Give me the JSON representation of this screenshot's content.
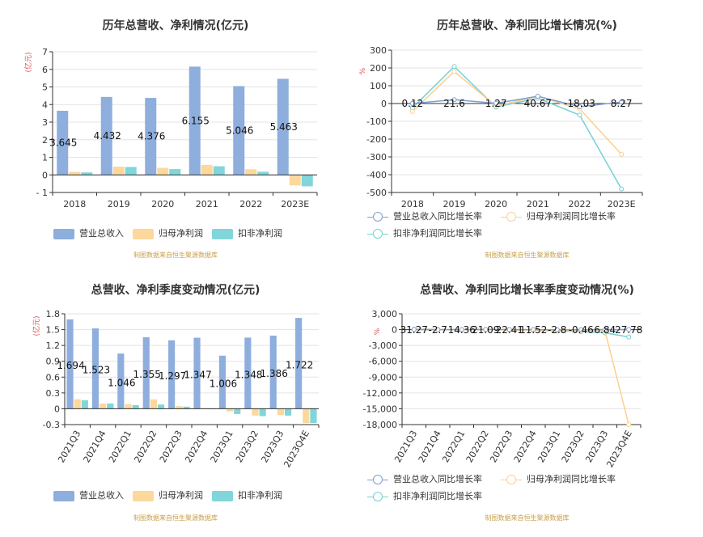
{
  "colors": {
    "revenue": "#8eaedd",
    "net_profit": "#fcd89d",
    "deducted_profit": "#80d6da",
    "line_revenue": "#7f9fd0",
    "line_net": "#fcd08e",
    "line_deducted": "#73d0d4",
    "axis": "#333333",
    "grid": "#e3e3e3",
    "source": "#c8a04a",
    "unit": "#e05050"
  },
  "source_note": "制图数据来自恒生聚源数据库",
  "chart_data": [
    {
      "type": "bar",
      "title": "历年总营收、净利情况(亿元)",
      "ylabel": "(亿元)",
      "categories": [
        "2018",
        "2019",
        "2020",
        "2021",
        "2022",
        "2023E"
      ],
      "ylim": [
        -1,
        7
      ],
      "yticks": [
        -1,
        0,
        1,
        2,
        3,
        4,
        5,
        6,
        7
      ],
      "ytick_labels": [
        "- 1",
        "0",
        "1",
        "2",
        "3",
        "4",
        "5",
        "6",
        "7"
      ],
      "series": [
        {
          "name": "营业总收入",
          "values": [
            3.645,
            4.432,
            4.376,
            6.155,
            5.046,
            5.463
          ]
        },
        {
          "name": "归母净利润",
          "values": [
            0.17,
            0.47,
            0.4,
            0.57,
            0.32,
            -0.6
          ]
        },
        {
          "name": "扣非净利润",
          "values": [
            0.14,
            0.45,
            0.33,
            0.49,
            0.18,
            -0.65
          ]
        }
      ],
      "data_labels": [
        "3.645",
        "4.432",
        "4.376",
        "6.155",
        "5.046",
        "5.463"
      ],
      "legend_position": "bottom-left"
    },
    {
      "type": "line",
      "title": "历年总营收、净利同比增长情况(%)",
      "ylabel": "%",
      "categories": [
        "2018",
        "2019",
        "2020",
        "2021",
        "2022",
        "2023E"
      ],
      "ylim": [
        -500,
        300
      ],
      "yticks": [
        -500,
        -400,
        -300,
        -200,
        -100,
        0,
        100,
        200,
        300
      ],
      "series": [
        {
          "name": "营业总收入同比增长率",
          "values": [
            0.12,
            21.6,
            1.27,
            40.67,
            -18.03,
            8.27
          ]
        },
        {
          "name": "归母净利润同比增长率",
          "values": [
            -45,
            180,
            -15,
            40,
            -30,
            -285
          ]
        },
        {
          "name": "扣非净利润同比增长率",
          "values": [
            -25,
            208,
            -20,
            30,
            -65,
            -480
          ]
        }
      ],
      "data_labels": [
        "0.12",
        "21.6",
        "1.27",
        "40.67",
        "-18.03",
        "8.27"
      ],
      "legend_position": "bottom-left"
    },
    {
      "type": "bar",
      "title": "总营收、净利季度变动情况(亿元)",
      "ylabel": "(亿元)",
      "categories": [
        "2021Q3",
        "2021Q4",
        "2022Q1",
        "2022Q2",
        "2022Q3",
        "2022Q4",
        "2023Q1",
        "2023Q2",
        "2023Q3",
        "2023Q4E"
      ],
      "ylim": [
        -0.3,
        1.8
      ],
      "yticks": [
        -0.3,
        0,
        0.3,
        0.6,
        0.9,
        1.2,
        1.5,
        1.8
      ],
      "ytick_labels": [
        "-0.3",
        "0",
        "0.3",
        "0.6",
        "0.9",
        "1.2",
        "1.5",
        "1.8"
      ],
      "series": [
        {
          "name": "营业总收入",
          "values": [
            1.694,
            1.523,
            1.046,
            1.355,
            1.297,
            1.347,
            1.006,
            1.348,
            1.386,
            1.722
          ]
        },
        {
          "name": "归母净利润",
          "values": [
            0.18,
            0.1,
            0.09,
            0.18,
            0.05,
            0.01,
            -0.05,
            -0.13,
            -0.12,
            -0.27
          ]
        },
        {
          "name": "扣非净利润",
          "values": [
            0.16,
            0.1,
            0.07,
            0.08,
            0.04,
            -0.01,
            -0.1,
            -0.14,
            -0.13,
            -0.27
          ]
        }
      ],
      "data_labels": [
        "1.694",
        "1.523",
        "1.046",
        "1.355",
        "1.297",
        "1.347",
        "1.006",
        "1.348",
        "1.386",
        "1.722"
      ],
      "legend_position": "bottom-left"
    },
    {
      "type": "line",
      "title": "总营收、净利同比增长率季度变动情况(%)",
      "ylabel": "%",
      "categories": [
        "2021Q3",
        "2021Q4",
        "2022Q1",
        "2022Q2",
        "2022Q3",
        "2022Q4",
        "2023Q1",
        "2023Q2",
        "2023Q3",
        "2023Q4E"
      ],
      "ylim": [
        -18000,
        3000
      ],
      "yticks": [
        -18000,
        -15000,
        -12000,
        -9000,
        -6000,
        -3000,
        0,
        3000
      ],
      "ytick_labels": [
        "-18,000",
        "-15,000",
        "-12,000",
        "-9,000",
        "-6,000",
        "-3,000",
        "0",
        "3,000"
      ],
      "series": [
        {
          "name": "营业总收入同比增长率",
          "values": [
            31.27,
            -2.7,
            14.36,
            21.09,
            22.41,
            11.52,
            -2.8,
            -0.46,
            6.84,
            27.78
          ]
        },
        {
          "name": "归母净利润同比增长率",
          "values": [
            60,
            40,
            -30,
            20,
            -80,
            -100,
            -200,
            -300,
            -200,
            -18000
          ]
        },
        {
          "name": "扣非净利润同比增长率",
          "values": [
            80,
            50,
            -40,
            10,
            -60,
            -120,
            -250,
            -400,
            -600,
            -1400
          ]
        }
      ],
      "data_labels": [
        "31.27",
        "-2.7",
        "14.36",
        "21.09",
        "22.41",
        "11.52",
        "-2.8",
        "-0.46",
        "6.84",
        "27.78"
      ],
      "legend_position": "bottom-left"
    }
  ]
}
